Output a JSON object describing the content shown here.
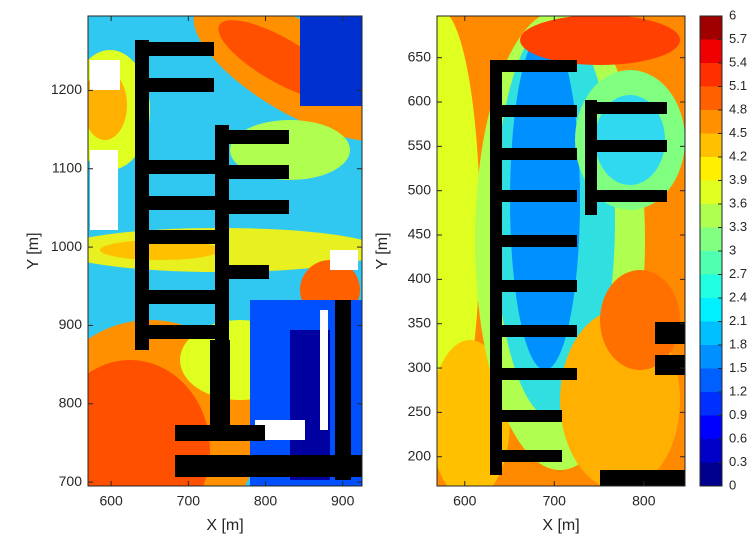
{
  "chart_data": [
    {
      "type": "contour",
      "xlabel": "X [m]",
      "ylabel": "Y [m]",
      "xlim": [
        570,
        925
      ],
      "ylim": [
        695,
        1295
      ],
      "xticks": [
        600,
        700,
        800,
        900
      ],
      "yticks": [
        700,
        800,
        900,
        1000,
        1100,
        1200
      ]
    },
    {
      "type": "contour",
      "xlabel": "X [m]",
      "ylabel": "Y [m]",
      "xlim": [
        569,
        846
      ],
      "ylim": [
        167,
        697
      ],
      "xticks": [
        600,
        700,
        800
      ],
      "yticks": [
        200,
        250,
        300,
        350,
        400,
        450,
        500,
        550,
        600,
        650
      ]
    }
  ],
  "colorbar": {
    "lim": [
      0,
      6
    ],
    "ticks": [
      0,
      0.3,
      0.6,
      0.9,
      1.2,
      1.5,
      1.8,
      2.1,
      2.4,
      2.7,
      3,
      3.3,
      3.6,
      3.9,
      4.2,
      4.5,
      4.8,
      5.1,
      5.4,
      5.7,
      6
    ],
    "colors": [
      "#00008f",
      "#0000c8",
      "#0000ff",
      "#0030ff",
      "#0060ff",
      "#0090ff",
      "#00c0ff",
      "#00f0ff",
      "#20ffdf",
      "#50ffaf",
      "#80ff80",
      "#afff50",
      "#dfff20",
      "#fff000",
      "#ffc000",
      "#ff9000",
      "#ff6000",
      "#ff3000",
      "#f00000",
      "#a00000"
    ]
  }
}
